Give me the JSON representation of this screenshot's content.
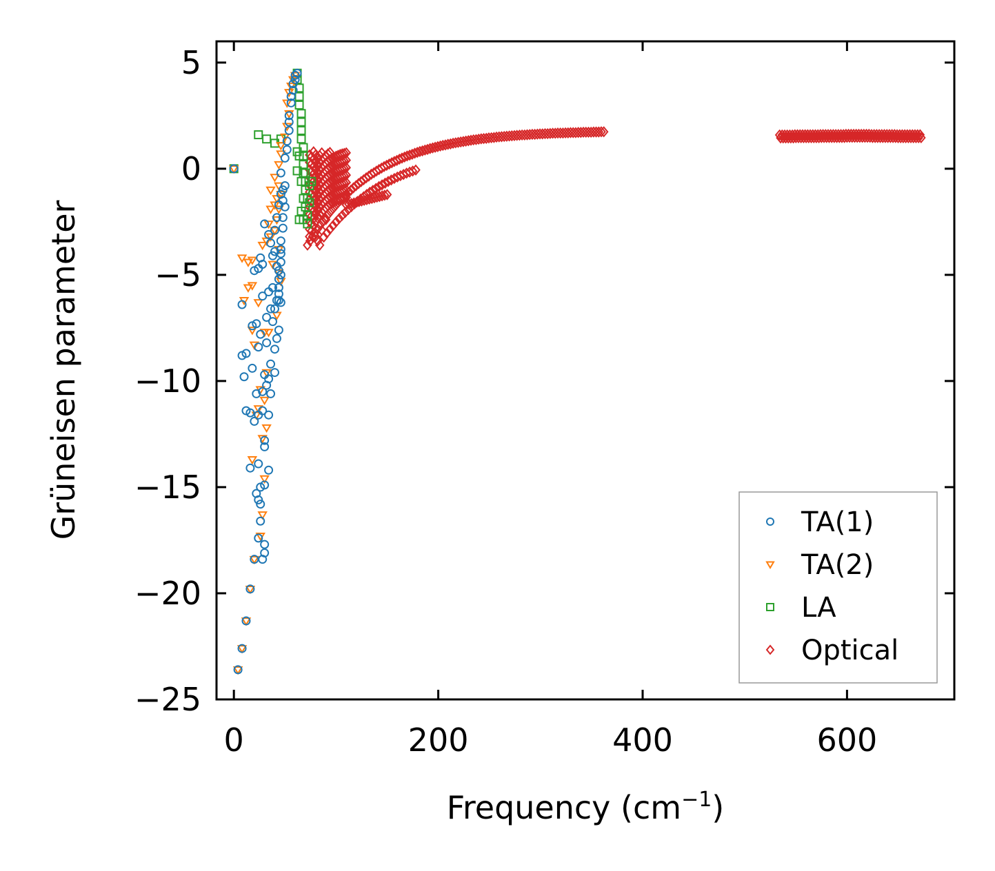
{
  "chart_data": {
    "type": "scatter",
    "title": "",
    "xlabel": "Frequency (cm",
    "xlabel_sup": "−1",
    "xlabel_close": ")",
    "ylabel": "Grüneisen parameter",
    "xlim": [
      -17,
      705
    ],
    "ylim": [
      -25,
      6
    ],
    "xticks": [
      0,
      200,
      400,
      600
    ],
    "xtick_labels": [
      "0",
      "200",
      "400",
      "600"
    ],
    "yticks": [
      5,
      0,
      -5,
      -10,
      -15,
      -20,
      -25
    ],
    "ytick_labels": [
      "5",
      "0",
      "−5",
      "−10",
      "−15",
      "−20",
      "−25"
    ],
    "grid": false,
    "legend_position": "lower-right",
    "series": [
      {
        "name": "TA(1)",
        "marker": "circle",
        "color": "#1f77b4",
        "points": [
          [
            0,
            0
          ],
          [
            4,
            -23.6
          ],
          [
            8,
            -22.6
          ],
          [
            12,
            -21.3
          ],
          [
            16,
            -19.8
          ],
          [
            20,
            -18.4
          ],
          [
            24,
            -17.4
          ],
          [
            26,
            -16.6
          ],
          [
            28,
            -18.4
          ],
          [
            30,
            -18.1
          ],
          [
            30,
            -17.7
          ],
          [
            26,
            -15.8
          ],
          [
            24,
            -15.6
          ],
          [
            22,
            -15.3
          ],
          [
            26,
            -15.0
          ],
          [
            30,
            -14.9
          ],
          [
            34,
            -14.2
          ],
          [
            24,
            -13.9
          ],
          [
            16,
            -14.1
          ],
          [
            8,
            -8.8
          ],
          [
            12,
            -8.7
          ],
          [
            10,
            -9.8
          ],
          [
            18,
            -9.4
          ],
          [
            12,
            -11.4
          ],
          [
            16,
            -11.5
          ],
          [
            20,
            -11.9
          ],
          [
            24,
            -11.6
          ],
          [
            28,
            -11.4
          ],
          [
            34,
            -11.6
          ],
          [
            22,
            -10.6
          ],
          [
            28,
            -10.5
          ],
          [
            36,
            -10.6
          ],
          [
            30,
            -12.8
          ],
          [
            30,
            -13.1
          ],
          [
            34,
            -9.9
          ],
          [
            36,
            -9.2
          ],
          [
            40,
            -9.6
          ],
          [
            40,
            -8.5
          ],
          [
            42,
            -8.0
          ],
          [
            44,
            -7.6
          ],
          [
            38,
            -7.2
          ],
          [
            40,
            -6.6
          ],
          [
            24,
            -8.4
          ],
          [
            26,
            -7.8
          ],
          [
            22,
            -7.3
          ],
          [
            18,
            -7.4
          ],
          [
            8,
            -6.4
          ],
          [
            20,
            -4.8
          ],
          [
            24,
            -4.7
          ],
          [
            26,
            -4.2
          ],
          [
            28,
            -4.5
          ],
          [
            30,
            -2.6
          ],
          [
            34,
            -3.1
          ],
          [
            36,
            -3.5
          ],
          [
            40,
            -3.9
          ],
          [
            42,
            -4.6
          ],
          [
            44,
            -5.2
          ],
          [
            44,
            -5.6
          ],
          [
            44,
            -6.2
          ],
          [
            46,
            -6.3
          ],
          [
            46,
            -5.0
          ],
          [
            46,
            -4.4
          ],
          [
            46,
            -3.8
          ],
          [
            48,
            -2.8
          ],
          [
            48,
            -2.3
          ],
          [
            50,
            -1.8
          ],
          [
            48,
            -1.0
          ],
          [
            50,
            -0.8
          ],
          [
            46,
            -0.2
          ],
          [
            50,
            0.5
          ],
          [
            52,
            1.3
          ],
          [
            54,
            2.2
          ],
          [
            54,
            2.5
          ],
          [
            56,
            3.1
          ],
          [
            56,
            3.4
          ],
          [
            58,
            3.7
          ],
          [
            58,
            4.0
          ],
          [
            60,
            4.2
          ],
          [
            60,
            4.4
          ],
          [
            62,
            4.5
          ],
          [
            38,
            -5.6
          ],
          [
            34,
            -5.8
          ],
          [
            38,
            -4.1
          ],
          [
            40,
            -2.9
          ],
          [
            42,
            -2.3
          ],
          [
            44,
            -1.7
          ],
          [
            46,
            -1.2
          ],
          [
            36,
            -6.6
          ],
          [
            32,
            -7.0
          ],
          [
            28,
            -6.0
          ],
          [
            32,
            -8.2
          ],
          [
            30,
            -9.7
          ],
          [
            32,
            -10.2
          ],
          [
            44,
            -4.8
          ],
          [
            46,
            -3.4
          ],
          [
            46,
            -4.0
          ],
          [
            44,
            -5.9
          ],
          [
            42,
            -6.2
          ],
          [
            48,
            -1.5
          ],
          [
            52,
            0.9
          ],
          [
            54,
            1.8
          ]
        ]
      },
      {
        "name": "TA(2)",
        "marker": "triangle-down",
        "color": "#ff7f0e",
        "points": [
          [
            0,
            0
          ],
          [
            4,
            -23.6
          ],
          [
            8,
            -22.6
          ],
          [
            12,
            -21.3
          ],
          [
            16,
            -19.8
          ],
          [
            20,
            -18.4
          ],
          [
            26,
            -17.3
          ],
          [
            28,
            -16.3
          ],
          [
            30,
            -14.6
          ],
          [
            18,
            -13.7
          ],
          [
            24,
            -11.3
          ],
          [
            32,
            -12.2
          ],
          [
            30,
            -10.9
          ],
          [
            32,
            -9.6
          ],
          [
            20,
            -8.3
          ],
          [
            18,
            -7.6
          ],
          [
            30,
            -7.7
          ],
          [
            34,
            -7.7
          ],
          [
            24,
            -6.3
          ],
          [
            10,
            -6.2
          ],
          [
            14,
            -5.6
          ],
          [
            18,
            -5.5
          ],
          [
            8,
            -4.2
          ],
          [
            14,
            -4.4
          ],
          [
            18,
            -4.3
          ],
          [
            28,
            -3.6
          ],
          [
            32,
            -3.4
          ],
          [
            36,
            -3.2
          ],
          [
            38,
            -4.5
          ],
          [
            34,
            -2.6
          ],
          [
            36,
            -1.9
          ],
          [
            40,
            -1.7
          ],
          [
            42,
            -1.4
          ],
          [
            36,
            -1.0
          ],
          [
            40,
            -0.4
          ],
          [
            44,
            -0.8
          ],
          [
            46,
            -1.2
          ],
          [
            44,
            0.2
          ],
          [
            46,
            0.7
          ],
          [
            46,
            1.1
          ],
          [
            50,
            1.5
          ],
          [
            52,
            2.0
          ],
          [
            54,
            2.6
          ],
          [
            52,
            3.1
          ],
          [
            54,
            3.6
          ],
          [
            56,
            3.9
          ],
          [
            58,
            4.2
          ],
          [
            60,
            4.4
          ],
          [
            44,
            -1.9
          ],
          [
            42,
            -2.4
          ],
          [
            40,
            -2.9
          ],
          [
            44,
            -3.8
          ],
          [
            44,
            -4.9
          ],
          [
            46,
            -5.3
          ],
          [
            42,
            -6.9
          ],
          [
            22,
            -11.6
          ],
          [
            26,
            -10.4
          ],
          [
            28,
            -12.7
          ]
        ]
      },
      {
        "name": "LA",
        "marker": "square",
        "color": "#2ca02c",
        "points": [
          [
            0,
            0
          ],
          [
            24,
            1.6
          ],
          [
            32,
            1.4
          ],
          [
            40,
            1.2
          ],
          [
            46,
            1.4
          ],
          [
            62,
            4.5
          ],
          [
            62,
            4.2
          ],
          [
            64,
            3.8
          ],
          [
            64,
            3.4
          ],
          [
            64,
            3.0
          ],
          [
            66,
            2.6
          ],
          [
            66,
            2.2
          ],
          [
            66,
            1.8
          ],
          [
            66,
            1.4
          ],
          [
            68,
            1.0
          ],
          [
            68,
            0.6
          ],
          [
            62,
            0.8
          ],
          [
            64,
            0.6
          ],
          [
            68,
            0.2
          ],
          [
            68,
            -0.2
          ],
          [
            66,
            -0.6
          ],
          [
            70,
            -0.6
          ],
          [
            70,
            -1.0
          ],
          [
            68,
            -1.4
          ],
          [
            72,
            -1.4
          ],
          [
            70,
            -1.8
          ],
          [
            72,
            -2.2
          ],
          [
            68,
            -2.4
          ],
          [
            72,
            -2.6
          ],
          [
            64,
            -2.4
          ],
          [
            66,
            -2.0
          ],
          [
            70,
            -0.2
          ],
          [
            74,
            -0.8
          ],
          [
            74,
            -1.6
          ],
          [
            62,
            -0.1
          ],
          [
            76,
            -0.6
          ]
        ]
      },
      {
        "name": "Optical",
        "marker": "diamond",
        "color": "#d62728",
        "points": []
      }
    ]
  }
}
